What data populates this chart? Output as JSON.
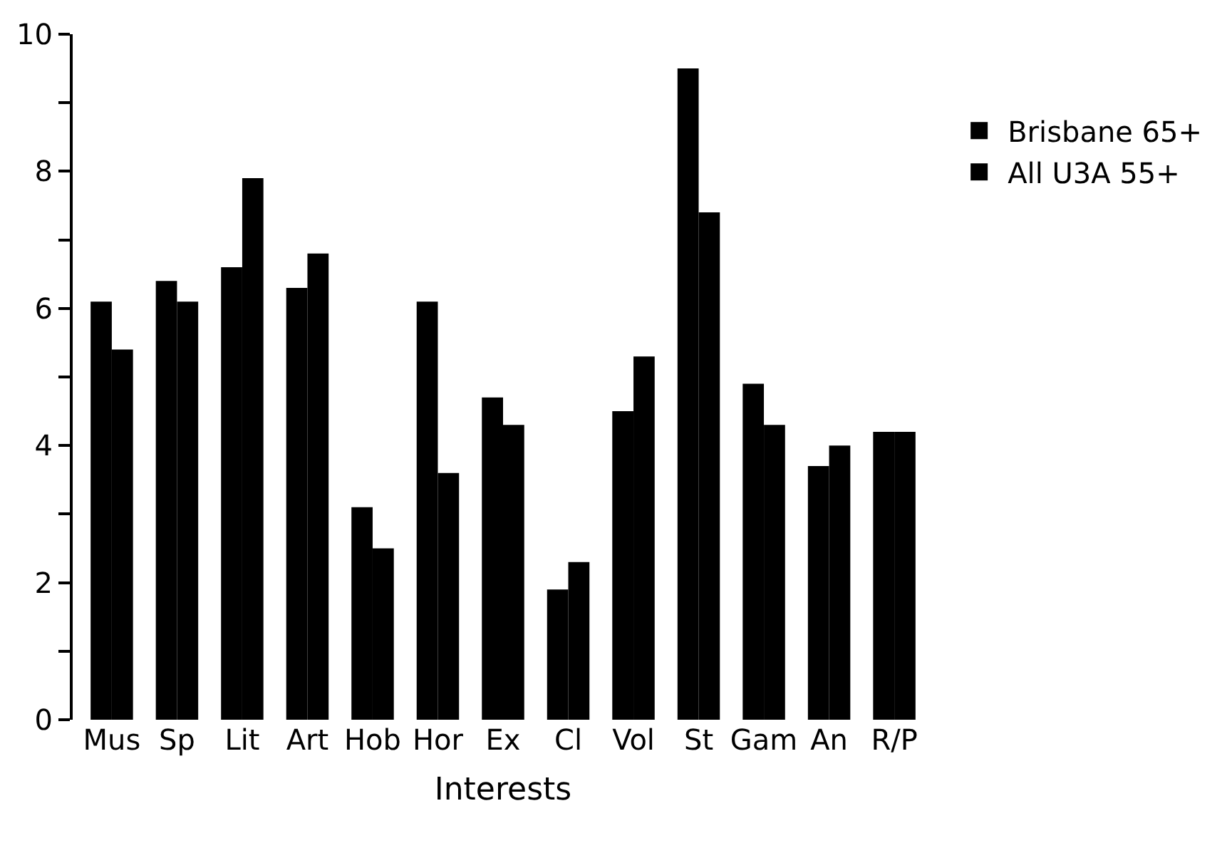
{
  "chart_data": {
    "type": "bar",
    "xlabel": "Interests",
    "categories": [
      "Mus",
      "Sp",
      "Lit",
      "Art",
      "Hob",
      "Hor",
      "Ex",
      "Cl",
      "Vol",
      "St",
      "Gam",
      "An",
      "R/P"
    ],
    "series": [
      {
        "name": "Brisbane 65+",
        "color": "#000000",
        "values": [
          6.1,
          6.4,
          6.6,
          6.3,
          3.1,
          6.1,
          4.7,
          1.9,
          4.5,
          9.5,
          4.9,
          3.7,
          4.2
        ]
      },
      {
        "name": "All U3A 55+",
        "color": "#000000",
        "values": [
          5.4,
          6.1,
          7.9,
          6.8,
          2.5,
          3.6,
          4.3,
          2.3,
          5.3,
          7.4,
          4.3,
          4.0,
          4.2
        ]
      }
    ],
    "ylim": [
      0,
      10
    ],
    "yticks": [
      0,
      {
        "value": 1,
        "label": null
      },
      2,
      {
        "value": 3,
        "label": null
      },
      4,
      {
        "value": 5,
        "label": null
      },
      6,
      {
        "value": 7,
        "label": null
      },
      8,
      {
        "value": 9,
        "label": null
      },
      10
    ],
    "legend": "top right"
  }
}
